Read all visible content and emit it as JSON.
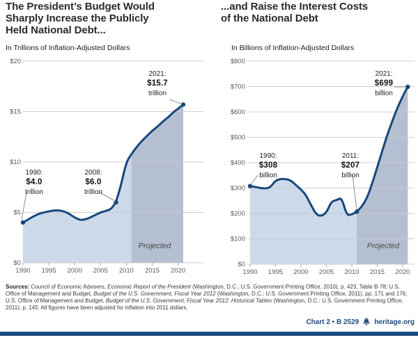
{
  "page": {
    "colors": {
      "line_navy": "#17477d",
      "fill_light": "#ccd9e8",
      "fill_projected": "#b4bfd1",
      "gridline": "#cccccc",
      "footer_navy": "#1b4a7e"
    }
  },
  "chart_data": [
    {
      "type": "area",
      "title": "The President’s Budget Would\nSharply Increase the Publicly\nHeld National Debt...",
      "subtitle": "In Trillions of Inflation-Adjusted Dollars",
      "x": [
        1990,
        1991,
        1992,
        1993,
        1994,
        1995,
        1996,
        1997,
        1998,
        1999,
        2000,
        2001,
        2002,
        2003,
        2004,
        2005,
        2006,
        2007,
        2008,
        2009,
        2010,
        2011,
        2012,
        2013,
        2014,
        2015,
        2016,
        2017,
        2018,
        2019,
        2020,
        2021
      ],
      "values": [
        4.0,
        4.3,
        4.6,
        4.85,
        5.0,
        5.1,
        5.2,
        5.2,
        5.1,
        4.85,
        4.5,
        4.25,
        4.3,
        4.5,
        4.75,
        5.0,
        5.15,
        5.3,
        6.0,
        7.8,
        10.0,
        10.8,
        11.5,
        12.1,
        12.6,
        13.1,
        13.5,
        14.0,
        14.4,
        14.9,
        15.3,
        15.7
      ],
      "ylim": [
        0,
        20
      ],
      "yticks": [
        0,
        5,
        10,
        15,
        20
      ],
      "ytick_labels": [
        "$0",
        "$5",
        "$10",
        "$15",
        "$20"
      ],
      "xticks": [
        1990,
        1995,
        2000,
        2005,
        2010,
        2015,
        2020
      ],
      "grid": true,
      "legend": false,
      "projection_start": 2011,
      "projected_label": "Projected",
      "annotations": [
        {
          "year": 1990,
          "year_label": "1990:",
          "value": "$4.0",
          "unit": "trillion"
        },
        {
          "year": 2008,
          "year_label": "2008:",
          "value": "$6.0",
          "unit": "trillion"
        },
        {
          "year": 2021,
          "year_label": "2021:",
          "value": "$15.7",
          "unit": "trillion"
        }
      ]
    },
    {
      "type": "area",
      "title": "...and Raise the Interest Costs\nof the National Debt",
      "subtitle": "In Billions of Inflation-Adjusted Dollars",
      "x": [
        1990,
        1991,
        1992,
        1993,
        1994,
        1995,
        1996,
        1997,
        1998,
        1999,
        2000,
        2001,
        2002,
        2003,
        2004,
        2005,
        2006,
        2007,
        2008,
        2009,
        2010,
        2011,
        2012,
        2013,
        2014,
        2015,
        2016,
        2017,
        2018,
        2019,
        2020,
        2021
      ],
      "values": [
        308,
        305,
        300,
        298,
        303,
        330,
        336,
        336,
        330,
        312,
        295,
        272,
        232,
        196,
        189,
        203,
        248,
        252,
        263,
        192,
        196,
        207,
        228,
        262,
        318,
        382,
        448,
        512,
        566,
        618,
        662,
        699
      ],
      "ylim": [
        0,
        800
      ],
      "yticks": [
        0,
        100,
        200,
        300,
        400,
        500,
        600,
        700,
        800
      ],
      "ytick_labels": [
        "$0",
        "$100",
        "$200",
        "$300",
        "$400",
        "$500",
        "$600",
        "$700",
        "$800"
      ],
      "xticks": [
        1990,
        1995,
        2000,
        2005,
        2010,
        2015,
        2020
      ],
      "grid": true,
      "legend": false,
      "projection_start": 2011,
      "projected_label": "Projected",
      "annotations": [
        {
          "year": 1990,
          "year_label": "1990:",
          "value": "$308",
          "unit": "billion"
        },
        {
          "year": 2011,
          "year_label": "2011:",
          "value": "$207",
          "unit": "billion"
        },
        {
          "year": 2021,
          "year_label": "2021:",
          "value": "$699",
          "unit": "billion"
        }
      ]
    }
  ],
  "sources": {
    "label": "Sources:",
    "segments": [
      {
        "t": " Council of Economic Advisers, "
      },
      {
        "t": "Economic Report of the President",
        "i": true
      },
      {
        "t": " (Washington, D.C.: U.S. Government Printing Office, 2010), p. 423, Table B-78; U.S. Office of Management and Budget, "
      },
      {
        "t": "Budget of the U.S. Government, Fiscal Year 2012",
        "i": true
      },
      {
        "t": " (Washington, D.C.: U.S. Government Printing Office, 2011), pp. 171 and 176; U.S. Office of Management and Budget, "
      },
      {
        "t": "Budget of the U.S. Government, Fiscal Year 2012: Historical Tables",
        "i": true
      },
      {
        "t": " (Washington, D.C.: U.S. Government Printing Office, 2011), p. 145.  All figures have been adjusted for inflation into 2011 dollars."
      }
    ]
  },
  "footer": {
    "chart_ref": "Chart 2 • B 2529",
    "site": "heritage.org"
  }
}
